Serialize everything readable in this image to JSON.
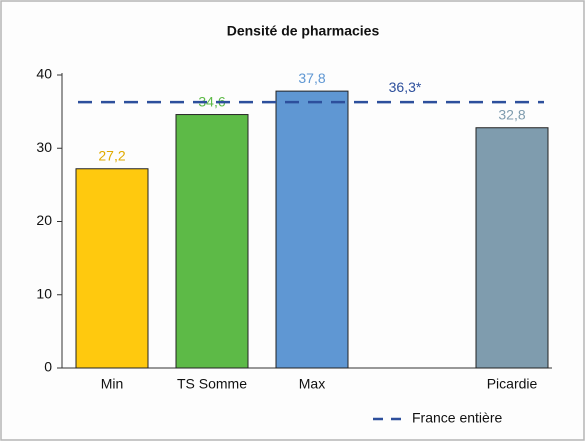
{
  "chart_data": {
    "type": "bar",
    "title": "Densité de pharmacies",
    "categories": [
      "Min",
      "TS Somme",
      "Max",
      null,
      "Picardie"
    ],
    "values": [
      27.2,
      34.6,
      37.8,
      null,
      32.8
    ],
    "value_labels": [
      "27,2",
      "34,6",
      "37,8",
      null,
      "32,8"
    ],
    "colors": [
      "#ffc90e",
      "#5dba47",
      "#5f97d3",
      null,
      "#7f9cae"
    ],
    "label_colors": [
      "#e0ab00",
      "#5dba47",
      "#5f97d3",
      null,
      "#7f9cae"
    ],
    "ylim": [
      0,
      40
    ],
    "yticks": [
      0,
      10,
      20,
      30,
      40
    ],
    "reference_line": {
      "value": 36.3,
      "label": "36,3*",
      "name": "France entière",
      "color": "#2d4f9c"
    }
  }
}
